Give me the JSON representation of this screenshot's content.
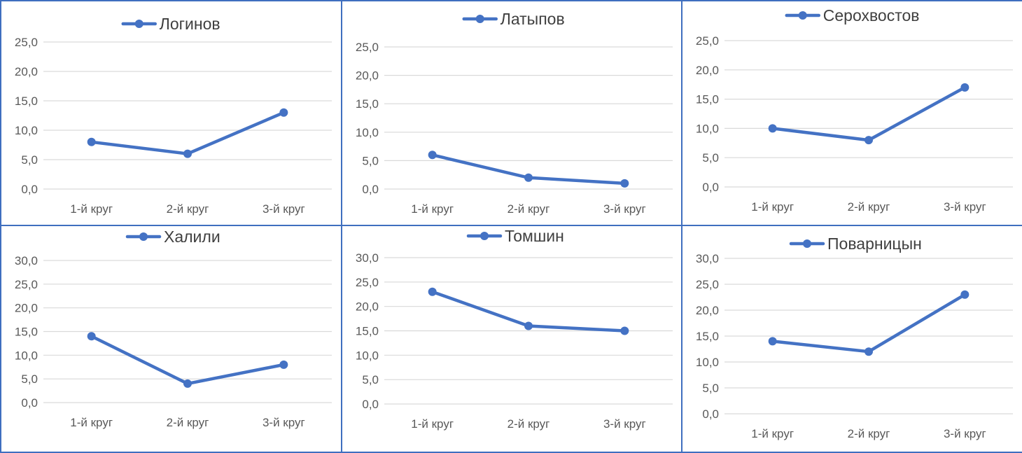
{
  "colors": {
    "series": "#4472c4",
    "grid": "#d9d9d9",
    "border": "#3f6fbf",
    "text": "#595959"
  },
  "chart_data": [
    {
      "type": "line",
      "title": "",
      "categories": [
        "1-й круг",
        "2-й круг",
        "3-й круг"
      ],
      "series": [
        {
          "name": "Логинов",
          "values": [
            8,
            6,
            13
          ]
        }
      ],
      "ylim": [
        0,
        25
      ],
      "yticks": [
        "0,0",
        "5,0",
        "10,0",
        "15,0",
        "20,0",
        "25,0"
      ],
      "grid": true,
      "legend": "top"
    },
    {
      "type": "line",
      "title": "",
      "categories": [
        "1-й круг",
        "2-й круг",
        "3-й круг"
      ],
      "series": [
        {
          "name": "Латыпов",
          "values": [
            6,
            2,
            1
          ]
        }
      ],
      "ylim": [
        0,
        25
      ],
      "yticks": [
        "0,0",
        "5,0",
        "10,0",
        "15,0",
        "20,0",
        "25,0"
      ],
      "grid": true,
      "legend": "top"
    },
    {
      "type": "line",
      "title": "",
      "categories": [
        "1-й круг",
        "2-й круг",
        "3-й круг"
      ],
      "series": [
        {
          "name": "Серохвостов",
          "values": [
            10,
            8,
            17
          ]
        }
      ],
      "ylim": [
        0,
        25
      ],
      "yticks": [
        "0,0",
        "5,0",
        "10,0",
        "15,0",
        "20,0",
        "25,0"
      ],
      "grid": true,
      "legend": "top"
    },
    {
      "type": "line",
      "title": "",
      "categories": [
        "1-й круг",
        "2-й круг",
        "3-й круг"
      ],
      "series": [
        {
          "name": "Халили",
          "values": [
            14,
            4,
            8
          ]
        }
      ],
      "ylim": [
        0,
        30
      ],
      "yticks": [
        "0,0",
        "5,0",
        "10,0",
        "15,0",
        "20,0",
        "25,0",
        "30,0"
      ],
      "grid": true,
      "legend": "top"
    },
    {
      "type": "line",
      "title": "",
      "categories": [
        "1-й круг",
        "2-й круг",
        "3-й круг"
      ],
      "series": [
        {
          "name": "Томшин",
          "values": [
            23,
            16,
            15
          ]
        }
      ],
      "ylim": [
        0,
        30
      ],
      "yticks": [
        "0,0",
        "5,0",
        "10,0",
        "15,0",
        "20,0",
        "25,0",
        "30,0"
      ],
      "grid": true,
      "legend": "top"
    },
    {
      "type": "line",
      "title": "",
      "categories": [
        "1-й круг",
        "2-й круг",
        "3-й круг"
      ],
      "series": [
        {
          "name": "Поварницын",
          "values": [
            14,
            12,
            23
          ]
        }
      ],
      "ylim": [
        0,
        30
      ],
      "yticks": [
        "0,0",
        "5,0",
        "10,0",
        "15,0",
        "20,0",
        "25,0",
        "30,0"
      ],
      "grid": true,
      "legend": "top"
    }
  ]
}
